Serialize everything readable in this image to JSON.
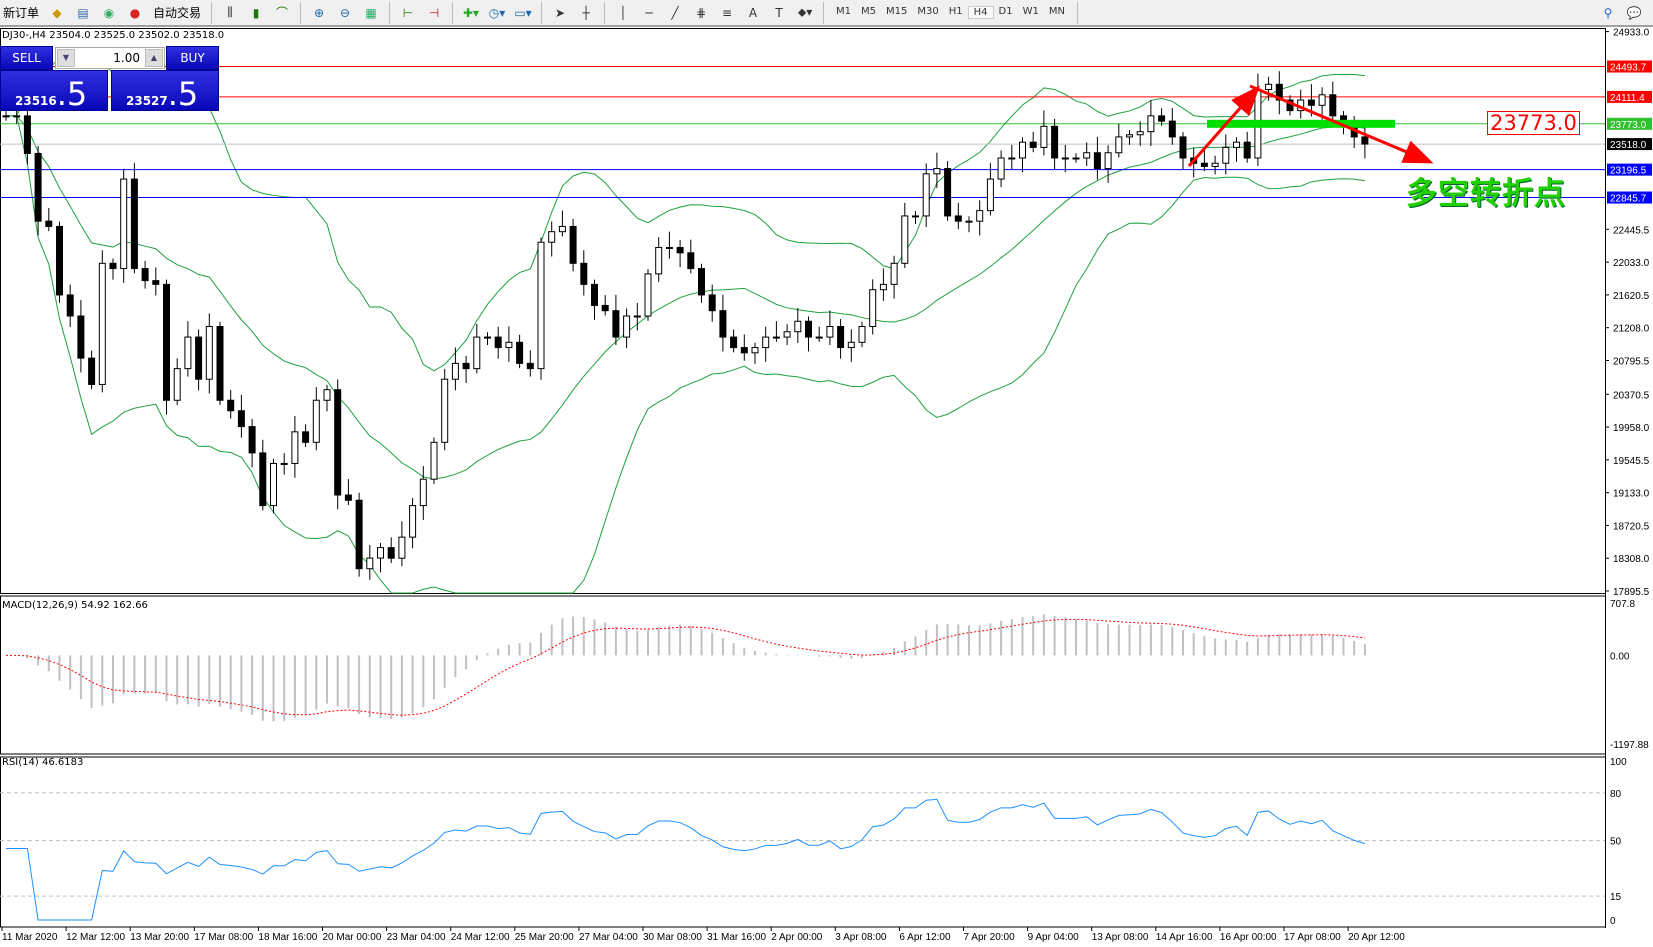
{
  "toolbar": {
    "new_order": "新订单",
    "auto_trading": "自动交易",
    "icons": [
      "history-center-icon",
      "market-watch-icon",
      "signals-icon",
      "auto-trading-icon",
      "bar-chart-icon",
      "candlestick-icon",
      "line-chart-icon",
      "zoom-in-icon",
      "zoom-out-icon",
      "tile-windows-icon",
      "chart-shift-icon",
      "autoscroll-icon",
      "indicators-icon",
      "periods-icon",
      "templates-icon",
      "cursor-icon",
      "crosshair-icon",
      "vertical-line-icon",
      "horizontal-line-icon",
      "trendline-icon",
      "fibonacci-icon",
      "fibo-fan-icon",
      "text-icon",
      "text-label-icon",
      "arrows-icon",
      "search-icon",
      "chat-icon"
    ],
    "timeframes": [
      "M1",
      "M5",
      "M15",
      "M30",
      "H1",
      "H4",
      "D1",
      "W1",
      "MN"
    ],
    "active_timeframe": "H4"
  },
  "symbol_info": "DJ30-,H4  23504.0 23525.0 23502.0 23518.0",
  "one_click": {
    "sell_label": "SELL",
    "buy_label": "BUY",
    "lot": "1.00",
    "sell_main": "23516",
    "sell_frac": ".5",
    "buy_main": "23527",
    "buy_frac": ".5"
  },
  "annotations": {
    "level_box": "23773.0",
    "text": "多空转折点"
  },
  "colors": {
    "bull": "#ffffff",
    "bear": "#000000",
    "bands": "#20a040",
    "resistance": "#ff0000",
    "support": "#0000ff",
    "pivot": "#00c000",
    "macd_signal": "#ff0000",
    "rsi": "#1e90ff"
  },
  "price_axis": {
    "ticks": [
      "24933.0",
      "22445.5",
      "22033.0",
      "21620.5",
      "21208.0",
      "20795.5",
      "20370.5",
      "19958.0",
      "19545.5",
      "19133.0",
      "18720.5",
      "18308.0",
      "17895.5"
    ],
    "max": 24933.0,
    "min": 17895.5
  },
  "levels": [
    {
      "value": 24493.7,
      "label": "24493.7",
      "color": "#ff0000"
    },
    {
      "value": 24111.4,
      "label": "24111.4",
      "color": "#ff0000"
    },
    {
      "value": 23773.0,
      "label": "23773.0",
      "color": "#30c030"
    },
    {
      "value": 23518.0,
      "label": "23518.0",
      "color": "#000000"
    },
    {
      "value": 23196.5,
      "label": "23196.5",
      "color": "#0000ff"
    },
    {
      "value": 22845.7,
      "label": "22845.7",
      "color": "#0000ff"
    }
  ],
  "macd": {
    "label": "MACD(12,26,9) 54.92 162.66",
    "max_label": "707.8",
    "zero_label": "0.00",
    "min_label": "-1197.88",
    "max": 707.8,
    "min": -1197.88
  },
  "rsi": {
    "label": "RSI(14) 46.6183",
    "levels": [
      {
        "v": 100,
        "t": "100"
      },
      {
        "v": 80,
        "t": "80"
      },
      {
        "v": 50,
        "t": "50"
      },
      {
        "v": 15,
        "t": "15"
      },
      {
        "v": 0,
        "t": "0"
      }
    ]
  },
  "time_axis": [
    "11 Mar 2020",
    "12 Mar 12:00",
    "13 Mar 20:00",
    "17 Mar 08:00",
    "18 Mar 16:00",
    "20 Mar 00:00",
    "23 Mar 04:00",
    "24 Mar 12:00",
    "25 Mar 20:00",
    "27 Mar 04:00",
    "30 Mar 08:00",
    "31 Mar 16:00",
    "2 Apr 00:00",
    "3 Apr 08:00",
    "6 Apr 12:00",
    "7 Apr 20:00",
    "9 Apr 04:00",
    "13 Apr 08:00",
    "14 Apr 16:00",
    "16 Apr 00:00",
    "17 Apr 08:00",
    "20 Apr 12:00"
  ],
  "chart_data": {
    "type": "candlestick",
    "indicators": [
      "Bollinger Bands",
      "MACD(12,26,9)",
      "RSI(14)"
    ],
    "closes": [
      23873,
      23873,
      23400,
      22548,
      22482,
      21620,
      21355,
      20825,
      20494,
      22018,
      21952,
      23078,
      21952,
      21800,
      21753,
      20295,
      20693,
      21090,
      20560,
      21223,
      20295,
      20163,
      19964,
      19633,
      18970,
      19500,
      19500,
      19898,
      19766,
      20295,
      20428,
      19103,
      19037,
      18176,
      18310,
      18441,
      18308,
      18573,
      18970,
      19302,
      19766,
      20560,
      20759,
      20693,
      21090,
      21090,
      20958,
      21024,
      20759,
      20693,
      22283,
      22416,
      22482,
      22018,
      21753,
      21488,
      21422,
      21090,
      21355,
      21355,
      21885,
      22217,
      22217,
      22150,
      21952,
      21620,
      21422,
      21090,
      20958,
      20892,
      20958,
      21090,
      21090,
      21157,
      21289,
      21090,
      21090,
      21223,
      20958,
      21024,
      21223,
      21686,
      21753,
      22018,
      22614,
      22614,
      23144,
      23210,
      22614,
      22548,
      22548,
      22681,
      23078,
      23343,
      23343,
      23542,
      23476,
      23741,
      23343,
      23343,
      23343,
      23409,
      23210,
      23409,
      23608,
      23635,
      23674,
      23873,
      23807,
      23608,
      23343,
      23277,
      23237,
      23277,
      23476,
      23542,
      23343,
      24204,
      24270,
      24072,
      23939,
      24072,
      24006,
      24138,
      23873,
      23741,
      23608,
      23518
    ]
  }
}
